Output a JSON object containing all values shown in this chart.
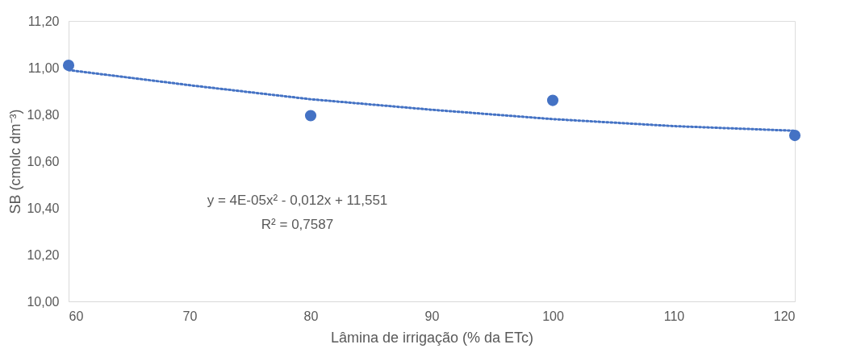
{
  "chart_data": {
    "type": "scatter",
    "xlabel": "Lâmina de irrigação (% da ETc)",
    "ylabel": "SB (cmolc dm⁻³)",
    "x": [
      60,
      80,
      100,
      120
    ],
    "series": [
      {
        "color": "#4472c4",
        "marker": "circle",
        "values": [
          11.01,
          10.795,
          10.86,
          10.71
        ]
      },
      {
        "type": "line",
        "color": "#4472c4",
        "line_style": "dotted",
        "x": [
          60,
          70,
          80,
          90,
          100,
          110,
          120
        ],
        "values": [
          10.99,
          10.925,
          10.865,
          10.82,
          10.78,
          10.75,
          10.73
        ]
      }
    ],
    "annotations": [
      "y = 4E-05x² - 0,012x + 11,551",
      "R² = 0,7587"
    ],
    "xlim": [
      60,
      120
    ],
    "xticks": [
      60,
      70,
      80,
      90,
      100,
      110,
      120
    ],
    "ylim": [
      10.0,
      11.2
    ],
    "yticks": [
      {
        "value": 10.0,
        "label": "10,00"
      },
      {
        "value": 10.2,
        "label": "10,20"
      },
      {
        "value": 10.4,
        "label": "10,40"
      },
      {
        "value": 10.6,
        "label": "10,60"
      },
      {
        "value": 10.8,
        "label": "10,80"
      },
      {
        "value": 11.0,
        "label": "11,00"
      },
      {
        "value": 11.2,
        "label": "11,20"
      }
    ],
    "grid": false
  }
}
